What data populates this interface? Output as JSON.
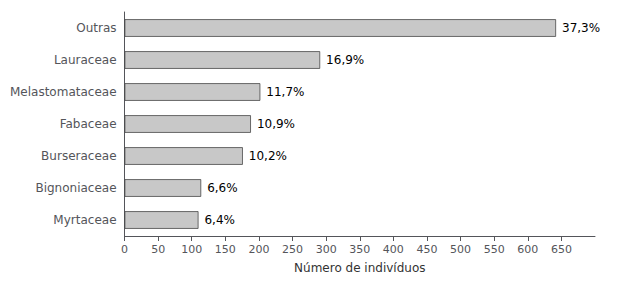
{
  "chart_data": {
    "type": "bar",
    "orientation": "horizontal",
    "categories": [
      "Outras",
      "Lauraceae",
      "Melastomataceae",
      "Fabaceae",
      "Burseraceae",
      "Bignoniaceae",
      "Myrtaceae"
    ],
    "values": [
      642,
      291,
      202,
      188,
      176,
      114,
      110
    ],
    "value_labels": [
      "37,3%",
      "16,9%",
      "11,7%",
      "10,9%",
      "10,2%",
      "6,6%",
      "6,4%"
    ],
    "data_labels": true,
    "color": "#c8c8c8",
    "xlabel": "Número de indivíduos",
    "xlim": [
      0,
      700
    ],
    "xticks": [
      0,
      50,
      100,
      150,
      200,
      250,
      300,
      350,
      400,
      450,
      500,
      550,
      600,
      650
    ],
    "grid": false
  }
}
